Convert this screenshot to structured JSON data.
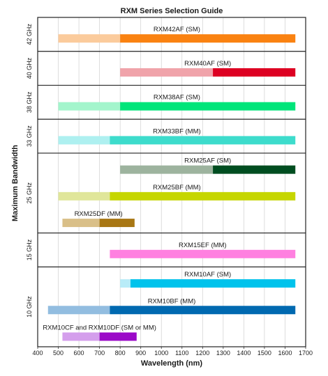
{
  "chart_data": {
    "type": "bar",
    "title": "RXM Series Selection Guide",
    "xlabel": "Wavelength (nm)",
    "ylabel": "Maximum Bandwidth",
    "xlim": [
      400,
      1700
    ],
    "xticks": [
      400,
      500,
      600,
      700,
      800,
      900,
      1000,
      1100,
      1200,
      1300,
      1400,
      1500,
      1600,
      1700
    ],
    "grid": "vertical",
    "colors": {
      "RXM42AF": [
        "#fbcb9c",
        "#fa8211"
      ],
      "RXM40AF": [
        "#f0a3aa",
        "#dd0022"
      ],
      "RXM38AF": [
        "#a3f5cc",
        "#00e57a"
      ],
      "RXM33BF": [
        "#aef0f0",
        "#3ddccc"
      ],
      "RXM25AF": [
        "#9db39e",
        "#004d20"
      ],
      "RXM25BF": [
        "#e0e69a",
        "#c6d600"
      ],
      "RXM25DF": [
        "#d9bf88",
        "#a87714"
      ],
      "RXM15EF": [
        "#ff80e0"
      ],
      "RXM10AF": [
        "#b8ecf8",
        "#00c3ec"
      ],
      "RXM10BF": [
        "#92bde0",
        "#0069b0"
      ],
      "RXM10CF": [
        "#d49eec",
        "#9b0ac8"
      ]
    },
    "groups": [
      {
        "band": "42 GHz",
        "bars": [
          {
            "label": "RXM42AF (SM)",
            "color_key": "RXM42AF",
            "segments": [
              {
                "from": 500,
                "to": 800,
                "tone": "light"
              },
              {
                "from": 800,
                "to": 1650,
                "tone": "dark"
              }
            ]
          }
        ]
      },
      {
        "band": "40 GHz",
        "bars": [
          {
            "label": "RXM40AF (SM)",
            "color_key": "RXM40AF",
            "segments": [
              {
                "from": 800,
                "to": 1250,
                "tone": "light"
              },
              {
                "from": 1250,
                "to": 1650,
                "tone": "dark"
              }
            ]
          }
        ]
      },
      {
        "band": "38 GHz",
        "bars": [
          {
            "label": "RXM38AF (SM)",
            "color_key": "RXM38AF",
            "segments": [
              {
                "from": 500,
                "to": 800,
                "tone": "light"
              },
              {
                "from": 800,
                "to": 1650,
                "tone": "dark"
              }
            ]
          }
        ]
      },
      {
        "band": "33 GHz",
        "bars": [
          {
            "label": "RXM33BF (MM)",
            "color_key": "RXM33BF",
            "segments": [
              {
                "from": 500,
                "to": 750,
                "tone": "light"
              },
              {
                "from": 750,
                "to": 1650,
                "tone": "dark"
              }
            ]
          }
        ]
      },
      {
        "band": "25 GHz",
        "bars": [
          {
            "label": "RXM25AF (SM)",
            "color_key": "RXM25AF",
            "segments": [
              {
                "from": 800,
                "to": 1250,
                "tone": "light"
              },
              {
                "from": 1250,
                "to": 1650,
                "tone": "dark"
              }
            ]
          },
          {
            "label": "RXM25BF (MM)",
            "color_key": "RXM25BF",
            "segments": [
              {
                "from": 500,
                "to": 750,
                "tone": "light"
              },
              {
                "from": 750,
                "to": 1650,
                "tone": "dark"
              }
            ]
          },
          {
            "label": "RXM25DF (MM)",
            "color_key": "RXM25DF",
            "segments": [
              {
                "from": 520,
                "to": 700,
                "tone": "light"
              },
              {
                "from": 700,
                "to": 870,
                "tone": "dark"
              }
            ]
          }
        ]
      },
      {
        "band": "15 GHz",
        "bars": [
          {
            "label": "RXM15EF (MM)",
            "color_key": "RXM15EF",
            "segments": [
              {
                "from": 750,
                "to": 1650,
                "tone": "light"
              }
            ]
          }
        ]
      },
      {
        "band": "10 GHz",
        "bars": [
          {
            "label": "RXM10AF (SM)",
            "color_key": "RXM10AF",
            "segments": [
              {
                "from": 800,
                "to": 850,
                "tone": "light"
              },
              {
                "from": 850,
                "to": 1650,
                "tone": "dark"
              }
            ]
          },
          {
            "label": "RXM10BF (MM)",
            "color_key": "RXM10BF",
            "segments": [
              {
                "from": 450,
                "to": 750,
                "tone": "light"
              },
              {
                "from": 750,
                "to": 1650,
                "tone": "dark"
              }
            ]
          },
          {
            "label": "RXM10CF and RXM10DF (SM or MM)",
            "color_key": "RXM10CF",
            "segments": [
              {
                "from": 520,
                "to": 700,
                "tone": "light"
              },
              {
                "from": 700,
                "to": 880,
                "tone": "dark"
              }
            ]
          }
        ]
      }
    ]
  }
}
